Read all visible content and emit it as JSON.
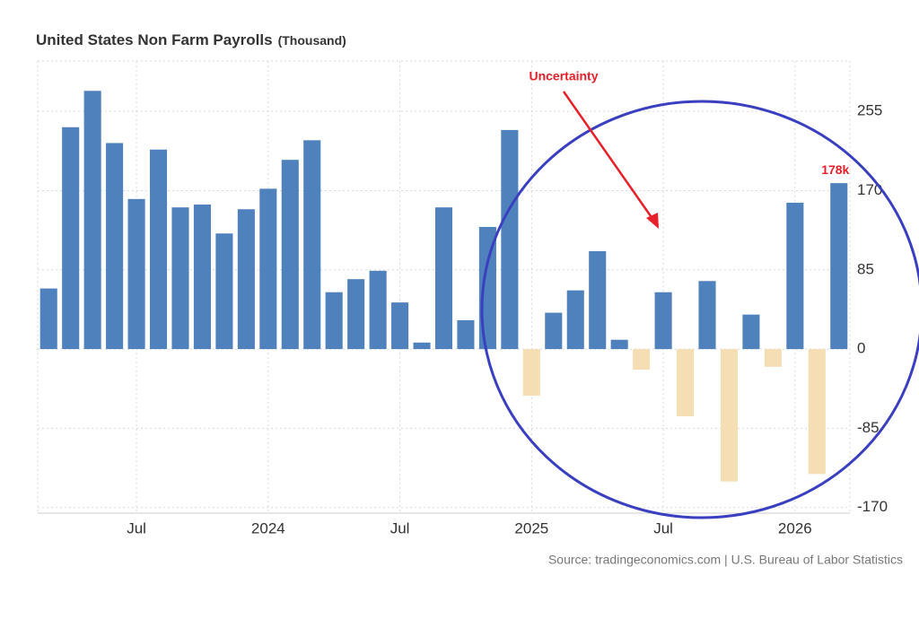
{
  "chart_data": {
    "type": "bar",
    "title": "United States Non Farm Payrolls",
    "subtitle": "(Thousand)",
    "source": "Source: tradingeconomics.com | U.S. Bureau of Labor Statistics",
    "annotation": "Uncertainty",
    "categories": [
      null,
      null,
      null,
      null,
      "Jul",
      null,
      null,
      null,
      null,
      null,
      "2024",
      null,
      null,
      null,
      null,
      null,
      "Jul",
      null,
      null,
      null,
      null,
      null,
      "2025",
      null,
      null,
      null,
      null,
      null,
      "Jul",
      null,
      null,
      null,
      null,
      null,
      "2026",
      null,
      null
    ],
    "values": [
      65,
      238,
      277,
      221,
      161,
      214,
      152,
      155,
      124,
      150,
      172,
      203,
      224,
      61,
      75,
      84,
      50,
      7,
      152,
      31,
      131,
      235,
      -50,
      39,
      63,
      105,
      10,
      -22,
      61,
      -72,
      73,
      -142,
      37,
      -19,
      157,
      -134,
      178
    ],
    "value_labels": [
      null,
      null,
      null,
      null,
      null,
      null,
      null,
      null,
      null,
      null,
      null,
      null,
      null,
      null,
      null,
      null,
      null,
      null,
      null,
      null,
      null,
      null,
      null,
      null,
      null,
      null,
      null,
      null,
      null,
      null,
      null,
      null,
      null,
      null,
      null,
      null,
      "178k"
    ],
    "color": "#4f81bd",
    "negative_color": "#f5deb3",
    "ylim": [
      -176,
      309
    ],
    "yticks": [
      -170,
      -85,
      0,
      85,
      170,
      255
    ],
    "grid": true
  }
}
